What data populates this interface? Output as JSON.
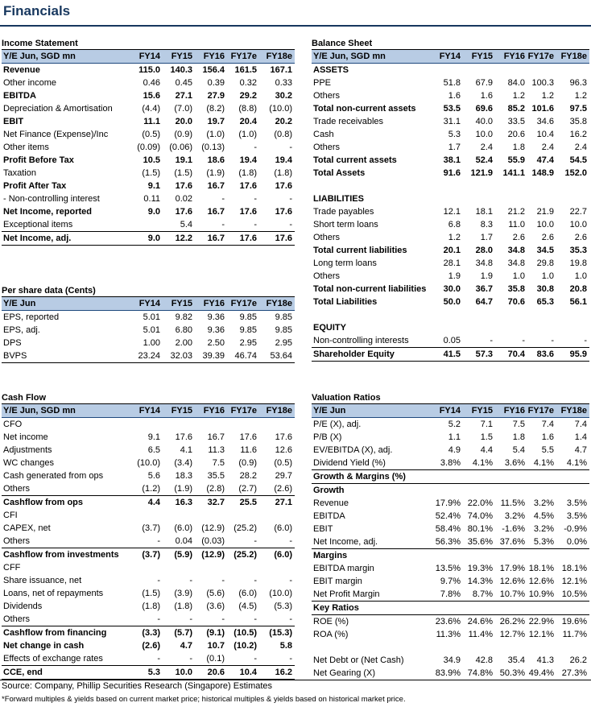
{
  "page_title": "Financials",
  "income": {
    "title": "Income Statement",
    "header": [
      "Y/E Jun, SGD mn",
      "FY14",
      "FY15",
      "FY16",
      "FY17e",
      "FY18e"
    ],
    "rows": [
      {
        "l": "Revenue",
        "v": [
          "115.0",
          "140.3",
          "156.4",
          "161.5",
          "167.1"
        ],
        "b": true
      },
      {
        "l": "Other income",
        "v": [
          "0.46",
          "0.45",
          "0.39",
          "0.32",
          "0.33"
        ]
      },
      {
        "l": "EBITDA",
        "v": [
          "15.6",
          "27.1",
          "27.9",
          "29.2",
          "30.2"
        ],
        "b": true
      },
      {
        "l": "Depreciation & Amortisation",
        "v": [
          "(4.4)",
          "(7.0)",
          "(8.2)",
          "(8.8)",
          "(10.0)"
        ]
      },
      {
        "l": "EBIT",
        "v": [
          "11.1",
          "20.0",
          "19.7",
          "20.4",
          "20.2"
        ],
        "b": true
      },
      {
        "l": "Net Finance (Expense)/Inc",
        "v": [
          "(0.5)",
          "(0.9)",
          "(1.0)",
          "(1.0)",
          "(0.8)"
        ]
      },
      {
        "l": "Other items",
        "v": [
          "(0.09)",
          "(0.06)",
          "(0.13)",
          "-",
          "-"
        ]
      },
      {
        "l": "Profit Before Tax",
        "v": [
          "10.5",
          "19.1",
          "18.6",
          "19.4",
          "19.4"
        ],
        "b": true
      },
      {
        "l": "Taxation",
        "v": [
          "(1.5)",
          "(1.5)",
          "(1.9)",
          "(1.8)",
          "(1.8)"
        ]
      },
      {
        "l": "Profit After Tax",
        "v": [
          "9.1",
          "17.6",
          "16.7",
          "17.6",
          "17.6"
        ],
        "b": true
      },
      {
        "l": "- Non-controlling interest",
        "v": [
          "0.11",
          "0.02",
          "-",
          "-",
          "-"
        ]
      },
      {
        "l": "Net Income, reported",
        "v": [
          "9.0",
          "17.6",
          "16.7",
          "17.6",
          "17.6"
        ],
        "b": true
      },
      {
        "l": "Exceptional items",
        "v": [
          "",
          "5.4",
          "-",
          "-",
          "-"
        ]
      },
      {
        "l": "Net Income, adj.",
        "v": [
          "9.0",
          "12.2",
          "16.7",
          "17.6",
          "17.6"
        ],
        "b": true,
        "top": true,
        "bot": true
      }
    ]
  },
  "pershare": {
    "title": "Per share data (Cents)",
    "header": [
      "Y/E Jun",
      "FY14",
      "FY15",
      "FY16",
      "FY17e",
      "FY18e"
    ],
    "rows": [
      {
        "l": "EPS, reported",
        "v": [
          "5.01",
          "9.82",
          "9.36",
          "9.85",
          "9.85"
        ]
      },
      {
        "l": "EPS, adj.",
        "v": [
          "5.01",
          "6.80",
          "9.36",
          "9.85",
          "9.85"
        ]
      },
      {
        "l": "DPS",
        "v": [
          "1.00",
          "2.00",
          "2.50",
          "2.95",
          "2.95"
        ]
      },
      {
        "l": "BVPS",
        "v": [
          "23.24",
          "32.03",
          "39.39",
          "46.74",
          "53.64"
        ],
        "bot": true
      }
    ]
  },
  "cashflow": {
    "title": "Cash Flow",
    "header": [
      "Y/E Jun, SGD mn",
      "FY14",
      "FY15",
      "FY16",
      "FY17e",
      "FY18e"
    ],
    "rows": [
      {
        "l": "CFO",
        "v": [
          "",
          "",
          "",
          "",
          ""
        ]
      },
      {
        "l": "Net income",
        "v": [
          "9.1",
          "17.6",
          "16.7",
          "17.6",
          "17.6"
        ]
      },
      {
        "l": "Adjustments",
        "v": [
          "6.5",
          "4.1",
          "11.3",
          "11.6",
          "12.6"
        ]
      },
      {
        "l": "WC changes",
        "v": [
          "(10.0)",
          "(3.4)",
          "7.5",
          "(0.9)",
          "(0.5)"
        ]
      },
      {
        "l": "Cash generated from ops",
        "v": [
          "5.6",
          "18.3",
          "35.5",
          "28.2",
          "29.7"
        ]
      },
      {
        "l": "Others",
        "v": [
          "(1.2)",
          "(1.9)",
          "(2.8)",
          "(2.7)",
          "(2.6)"
        ]
      },
      {
        "l": "Cashflow from ops",
        "v": [
          "4.4",
          "16.3",
          "32.7",
          "25.5",
          "27.1"
        ],
        "b": true,
        "top": true
      },
      {
        "l": "CFI",
        "v": [
          "",
          "",
          "",
          "",
          ""
        ]
      },
      {
        "l": "CAPEX, net",
        "v": [
          "(3.7)",
          "(6.0)",
          "(12.9)",
          "(25.2)",
          "(6.0)"
        ]
      },
      {
        "l": "Others",
        "v": [
          "-",
          "0.04",
          "(0.03)",
          "-",
          "-"
        ]
      },
      {
        "l": "Cashflow from investments",
        "v": [
          "(3.7)",
          "(5.9)",
          "(12.9)",
          "(25.2)",
          "(6.0)"
        ],
        "b": true,
        "top": true
      },
      {
        "l": "CFF",
        "v": [
          "",
          "",
          "",
          "",
          ""
        ]
      },
      {
        "l": "Share issuance, net",
        "v": [
          "-",
          "-",
          "-",
          "-",
          "-"
        ]
      },
      {
        "l": "Loans, net of repayments",
        "v": [
          "(1.5)",
          "(3.9)",
          "(5.6)",
          "(6.0)",
          "(10.0)"
        ]
      },
      {
        "l": "Dividends",
        "v": [
          "(1.8)",
          "(1.8)",
          "(3.6)",
          "(4.5)",
          "(5.3)"
        ]
      },
      {
        "l": "Others",
        "v": [
          "-",
          "-",
          "-",
          "-",
          "-"
        ]
      },
      {
        "l": "Cashflow from financing",
        "v": [
          "(3.3)",
          "(5.7)",
          "(9.1)",
          "(10.5)",
          "(15.3)"
        ],
        "b": true,
        "top": true
      },
      {
        "l": "Net change in cash",
        "v": [
          "(2.6)",
          "4.7",
          "10.7",
          "(10.2)",
          "5.8"
        ],
        "b": true
      },
      {
        "l": "Effects of exchange rates",
        "v": [
          "-",
          "-",
          "(0.1)",
          "-",
          "-"
        ]
      },
      {
        "l": "CCE, end",
        "v": [
          "5.3",
          "10.0",
          "20.6",
          "10.4",
          "16.2"
        ],
        "b": true,
        "top": true,
        "bot": true
      }
    ]
  },
  "balance": {
    "title": "Balance Sheet",
    "header": [
      "Y/E Jun, SGD mn",
      "FY14",
      "FY15",
      "FY16",
      "FY17e",
      "FY18e"
    ],
    "rows": [
      {
        "l": "ASSETS",
        "v": [
          "",
          "",
          "",
          "",
          ""
        ],
        "b": true
      },
      {
        "l": "PPE",
        "v": [
          "51.8",
          "67.9",
          "84.0",
          "100.3",
          "96.3"
        ]
      },
      {
        "l": "Others",
        "v": [
          "1.6",
          "1.6",
          "1.2",
          "1.2",
          "1.2"
        ]
      },
      {
        "l": "Total non-current assets",
        "v": [
          "53.5",
          "69.6",
          "85.2",
          "101.6",
          "97.5"
        ],
        "b": true
      },
      {
        "l": "Trade receivables",
        "v": [
          "31.1",
          "40.0",
          "33.5",
          "34.6",
          "35.8"
        ]
      },
      {
        "l": "Cash",
        "v": [
          "5.3",
          "10.0",
          "20.6",
          "10.4",
          "16.2"
        ]
      },
      {
        "l": "Others",
        "v": [
          "1.7",
          "2.4",
          "1.8",
          "2.4",
          "2.4"
        ]
      },
      {
        "l": "Total current assets",
        "v": [
          "38.1",
          "52.4",
          "55.9",
          "47.4",
          "54.5"
        ],
        "b": true
      },
      {
        "l": "Total Assets",
        "v": [
          "91.6",
          "121.9",
          "141.1",
          "148.9",
          "152.0"
        ],
        "b": true
      },
      {
        "l": "",
        "v": [
          "",
          "",
          "",
          "",
          ""
        ]
      },
      {
        "l": "LIABILITIES",
        "v": [
          "",
          "",
          "",
          "",
          ""
        ],
        "b": true
      },
      {
        "l": "Trade payables",
        "v": [
          "12.1",
          "18.1",
          "21.2",
          "21.9",
          "22.7"
        ]
      },
      {
        "l": "Short term loans",
        "v": [
          "6.8",
          "8.3",
          "11.0",
          "10.0",
          "10.0"
        ]
      },
      {
        "l": "Others",
        "v": [
          "1.2",
          "1.7",
          "2.6",
          "2.6",
          "2.6"
        ]
      },
      {
        "l": "Total current liabilities",
        "v": [
          "20.1",
          "28.0",
          "34.8",
          "34.5",
          "35.3"
        ],
        "b": true
      },
      {
        "l": "Long term loans",
        "v": [
          "28.1",
          "34.8",
          "34.8",
          "29.8",
          "19.8"
        ]
      },
      {
        "l": "Others",
        "v": [
          "1.9",
          "1.9",
          "1.0",
          "1.0",
          "1.0"
        ]
      },
      {
        "l": "Total non-current liabilities",
        "v": [
          "30.0",
          "36.7",
          "35.8",
          "30.8",
          "20.8"
        ],
        "b": true
      },
      {
        "l": "Total Liabilities",
        "v": [
          "50.0",
          "64.7",
          "70.6",
          "65.3",
          "56.1"
        ],
        "b": true
      },
      {
        "l": "",
        "v": [
          "",
          "",
          "",
          "",
          ""
        ]
      },
      {
        "l": "EQUITY",
        "v": [
          "",
          "",
          "",
          "",
          ""
        ],
        "b": true
      },
      {
        "l": "Non-controlling interests",
        "v": [
          "0.05",
          "-",
          "-",
          "-",
          "-"
        ]
      },
      {
        "l": "Shareholder Equity",
        "v": [
          "41.5",
          "57.3",
          "70.4",
          "83.6",
          "95.9"
        ],
        "b": true,
        "top": true,
        "bot": true
      }
    ]
  },
  "valuation": {
    "title": "Valuation Ratios",
    "header": [
      "Y/E Jun",
      "FY14",
      "FY15",
      "FY16",
      "FY17e",
      "FY18e"
    ],
    "rows": [
      {
        "l": "P/E (X), adj.",
        "v": [
          "5.2",
          "7.1",
          "7.5",
          "7.4",
          "7.4"
        ]
      },
      {
        "l": "P/B (X)",
        "v": [
          "1.1",
          "1.5",
          "1.8",
          "1.6",
          "1.4"
        ]
      },
      {
        "l": "EV/EBITDA (X), adj.",
        "v": [
          "4.9",
          "4.4",
          "5.4",
          "5.5",
          "4.7"
        ]
      },
      {
        "l": "Dividend Yield (%)",
        "v": [
          "3.8%",
          "4.1%",
          "3.6%",
          "4.1%",
          "4.1%"
        ]
      },
      {
        "l": "Growth & Margins (%)",
        "v": [
          "",
          "",
          "",
          "",
          ""
        ],
        "b": true,
        "top": true
      },
      {
        "l": "Growth",
        "v": [
          "",
          "",
          "",
          "",
          ""
        ],
        "b": true,
        "top": true
      },
      {
        "l": "Revenue",
        "v": [
          "17.9%",
          "22.0%",
          "11.5%",
          "3.2%",
          "3.5%"
        ]
      },
      {
        "l": "EBITDA",
        "v": [
          "52.4%",
          "74.0%",
          "3.2%",
          "4.5%",
          "3.5%"
        ]
      },
      {
        "l": "EBIT",
        "v": [
          "58.4%",
          "80.1%",
          "-1.6%",
          "3.2%",
          "-0.9%"
        ]
      },
      {
        "l": "Net Income, adj.",
        "v": [
          "56.3%",
          "35.6%",
          "37.6%",
          "5.3%",
          "0.0%"
        ]
      },
      {
        "l": "Margins",
        "v": [
          "",
          "",
          "",
          "",
          ""
        ],
        "b": true,
        "top": true
      },
      {
        "l": "EBITDA margin",
        "v": [
          "13.5%",
          "19.3%",
          "17.9%",
          "18.1%",
          "18.1%"
        ]
      },
      {
        "l": "EBIT margin",
        "v": [
          "9.7%",
          "14.3%",
          "12.6%",
          "12.6%",
          "12.1%"
        ]
      },
      {
        "l": "Net Profit Margin",
        "v": [
          "7.8%",
          "8.7%",
          "10.7%",
          "10.9%",
          "10.5%"
        ]
      },
      {
        "l": "Key Ratios",
        "v": [
          "",
          "",
          "",
          "",
          ""
        ],
        "b": true,
        "top": true
      },
      {
        "l": "ROE (%)",
        "v": [
          "23.6%",
          "24.6%",
          "26.2%",
          "22.9%",
          "19.6%"
        ],
        "top": true
      },
      {
        "l": "ROA (%)",
        "v": [
          "11.3%",
          "11.4%",
          "12.7%",
          "12.1%",
          "11.7%"
        ]
      },
      {
        "l": "",
        "v": [
          "",
          "",
          "",
          "",
          ""
        ]
      },
      {
        "l": "Net Debt or (Net Cash)",
        "v": [
          "34.9",
          "42.8",
          "35.4",
          "41.3",
          "26.2"
        ]
      },
      {
        "l": "Net Gearing (X)",
        "v": [
          "83.9%",
          "74.8%",
          "50.3%",
          "49.4%",
          "27.3%"
        ],
        "bot": true
      }
    ]
  },
  "source": "Source: Company, Phillip Securities Research (Singapore) Estimates",
  "footnote": "*Forward multiples & yields based on current market price; historical multiples & yields based on historical market price."
}
